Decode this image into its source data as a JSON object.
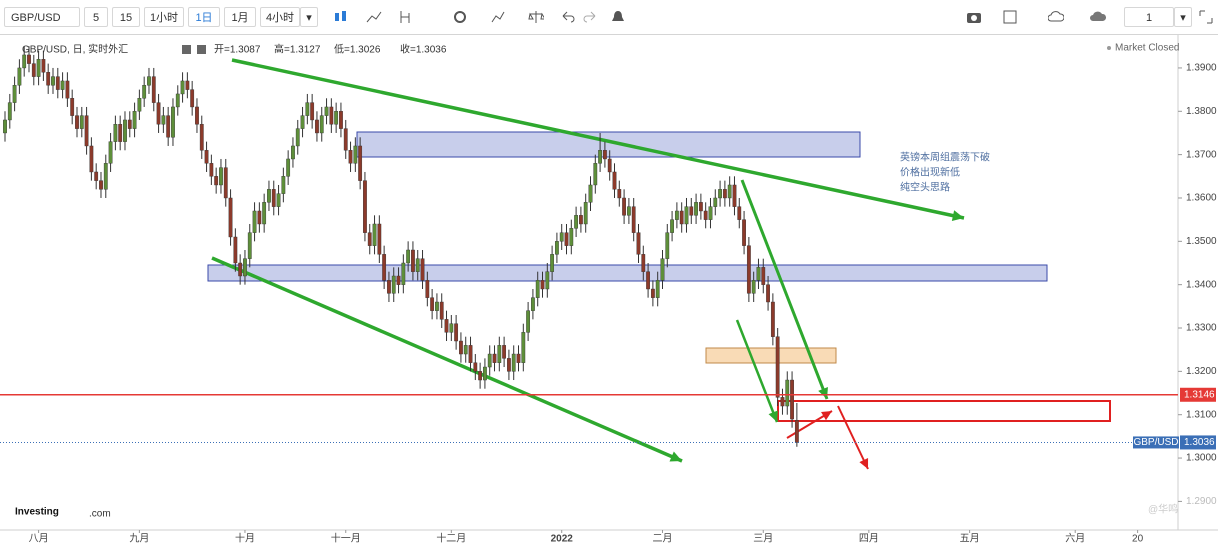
{
  "toolbar": {
    "symbol": "GBP/USD",
    "intervals": [
      "5",
      "15",
      "1小时",
      "1日",
      "1月",
      "4小时"
    ],
    "count": "1"
  },
  "chart_data": {
    "type": "candlestick",
    "legend_title": "GBP/USD, 日, 实时外汇",
    "ohlc_text": [
      "开=1.3087",
      "高=1.3127",
      "低=1.3026",
      "收=1.3036"
    ],
    "status": "Market Closed",
    "annotation": [
      "英镑本周组震荡下破",
      "价格出现新低",
      "纯空头思路"
    ],
    "logo": [
      "Investing",
      ".com"
    ],
    "watermark": "@华鸣",
    "up_color": "#5e8f3a",
    "down_color": "#8c3a2b",
    "xlim": [
      0,
      244
    ],
    "xticks": [
      {
        "value": 7,
        "label": "八月"
      },
      {
        "value": 28,
        "label": "九月"
      },
      {
        "value": 50,
        "label": "十月"
      },
      {
        "value": 71,
        "label": "十一月"
      },
      {
        "value": 93,
        "label": "十二月"
      },
      {
        "value": 116,
        "label": "2022"
      },
      {
        "value": 137,
        "label": "二月"
      },
      {
        "value": 158,
        "label": "三月"
      },
      {
        "value": 180,
        "label": "四月"
      },
      {
        "value": 201,
        "label": "五月"
      },
      {
        "value": 223,
        "label": "六月"
      },
      {
        "value": 236,
        "label": "20"
      }
    ],
    "ylim": [
      1.2834,
      1.3976
    ],
    "yticks": [
      {
        "value": 1.29,
        "label": "1.2900"
      },
      {
        "value": 1.3,
        "label": "1.3000"
      },
      {
        "value": 1.31,
        "label": "1.3100"
      },
      {
        "value": 1.32,
        "label": "1.3200"
      },
      {
        "value": 1.33,
        "label": "1.3300"
      },
      {
        "value": 1.34,
        "label": "1.3400"
      },
      {
        "value": 1.35,
        "label": "1.3500"
      },
      {
        "value": 1.36,
        "label": "1.3600"
      },
      {
        "value": 1.37,
        "label": "1.3700"
      },
      {
        "value": 1.38,
        "label": "1.3800"
      },
      {
        "value": 1.39,
        "label": "1.3900"
      }
    ],
    "hlines": [
      {
        "value": 1.3146,
        "color": "#e53935",
        "style": "solid"
      },
      {
        "name": "GBP/USD",
        "value": 1.3036,
        "color": "#3b6fb6",
        "style": "dotted"
      }
    ],
    "open": [
      1.375,
      1.378,
      1.382,
      1.386,
      1.39,
      1.393,
      1.391,
      1.388,
      1.392,
      1.389,
      1.386,
      1.388,
      1.385,
      1.387,
      1.383,
      1.379,
      1.376,
      1.379,
      1.372,
      1.366,
      1.364,
      1.362,
      1.368,
      1.373,
      1.377,
      1.373,
      1.378,
      1.376,
      1.38,
      1.383,
      1.386,
      1.388,
      1.382,
      1.377,
      1.379,
      1.374,
      1.381,
      1.384,
      1.387,
      1.385,
      1.381,
      1.377,
      1.371,
      1.368,
      1.365,
      1.363,
      1.367,
      1.36,
      1.351,
      1.345,
      1.342,
      1.346,
      1.352,
      1.357,
      1.354,
      1.359,
      1.362,
      1.358,
      1.361,
      1.365,
      1.369,
      1.372,
      1.376,
      1.379,
      1.382,
      1.378,
      1.375,
      1.379,
      1.381,
      1.377,
      1.38,
      1.376,
      1.371,
      1.368,
      1.372,
      1.364,
      1.352,
      1.349,
      1.354,
      1.347,
      1.341,
      1.338,
      1.342,
      1.34,
      1.345,
      1.348,
      1.343,
      1.346,
      1.341,
      1.337,
      1.334,
      1.336,
      1.332,
      1.329,
      1.331,
      1.327,
      1.324,
      1.326,
      1.322,
      1.32,
      1.318,
      1.321,
      1.324,
      1.322,
      1.326,
      1.323,
      1.32,
      1.324,
      1.322,
      1.329,
      1.334,
      1.337,
      1.341,
      1.339,
      1.343,
      1.347,
      1.35,
      1.352,
      1.349,
      1.353,
      1.356,
      1.354,
      1.359,
      1.363,
      1.368,
      1.371,
      1.369,
      1.366,
      1.362,
      1.36,
      1.356,
      1.358,
      1.352,
      1.347,
      1.343,
      1.339,
      1.337,
      1.341,
      1.346,
      1.352,
      1.355,
      1.357,
      1.354,
      1.358,
      1.356,
      1.359,
      1.357,
      1.355,
      1.358,
      1.36,
      1.362,
      1.36,
      1.363,
      1.358,
      1.355,
      1.349,
      1.338,
      1.341,
      1.344,
      1.34,
      1.336,
      1.328,
      1.314,
      1.312,
      1.318,
      1.3087
    ],
    "high": [
      1.38,
      1.384,
      1.388,
      1.392,
      1.395,
      1.395,
      1.393,
      1.394,
      1.394,
      1.391,
      1.39,
      1.39,
      1.389,
      1.389,
      1.385,
      1.381,
      1.381,
      1.381,
      1.374,
      1.368,
      1.366,
      1.37,
      1.375,
      1.379,
      1.379,
      1.38,
      1.38,
      1.382,
      1.385,
      1.388,
      1.39,
      1.39,
      1.384,
      1.381,
      1.381,
      1.383,
      1.386,
      1.389,
      1.389,
      1.387,
      1.383,
      1.379,
      1.373,
      1.37,
      1.367,
      1.369,
      1.369,
      1.362,
      1.353,
      1.347,
      1.348,
      1.354,
      1.359,
      1.359,
      1.361,
      1.364,
      1.364,
      1.363,
      1.367,
      1.371,
      1.374,
      1.378,
      1.381,
      1.384,
      1.384,
      1.38,
      1.381,
      1.383,
      1.383,
      1.382,
      1.382,
      1.378,
      1.373,
      1.374,
      1.374,
      1.366,
      1.354,
      1.356,
      1.356,
      1.349,
      1.343,
      1.344,
      1.344,
      1.347,
      1.35,
      1.35,
      1.348,
      1.348,
      1.343,
      1.339,
      1.338,
      1.338,
      1.334,
      1.333,
      1.333,
      1.329,
      1.328,
      1.328,
      1.324,
      1.322,
      1.323,
      1.326,
      1.326,
      1.328,
      1.328,
      1.325,
      1.326,
      1.326,
      1.331,
      1.336,
      1.339,
      1.343,
      1.343,
      1.345,
      1.349,
      1.352,
      1.354,
      1.354,
      1.355,
      1.358,
      1.358,
      1.361,
      1.365,
      1.37,
      1.375,
      1.373,
      1.371,
      1.368,
      1.364,
      1.362,
      1.36,
      1.36,
      1.354,
      1.349,
      1.345,
      1.341,
      1.343,
      1.348,
      1.354,
      1.357,
      1.359,
      1.359,
      1.36,
      1.36,
      1.361,
      1.361,
      1.359,
      1.36,
      1.362,
      1.364,
      1.364,
      1.365,
      1.365,
      1.36,
      1.357,
      1.351,
      1.343,
      1.346,
      1.346,
      1.342,
      1.338,
      1.33,
      1.316,
      1.32,
      1.32,
      1.3127
    ],
    "low": [
      1.373,
      1.376,
      1.38,
      1.384,
      1.388,
      1.389,
      1.386,
      1.386,
      1.387,
      1.384,
      1.384,
      1.383,
      1.383,
      1.381,
      1.377,
      1.374,
      1.374,
      1.37,
      1.364,
      1.362,
      1.36,
      1.36,
      1.366,
      1.371,
      1.371,
      1.371,
      1.374,
      1.374,
      1.378,
      1.381,
      1.384,
      1.38,
      1.375,
      1.375,
      1.372,
      1.372,
      1.379,
      1.382,
      1.383,
      1.379,
      1.375,
      1.369,
      1.366,
      1.363,
      1.361,
      1.361,
      1.358,
      1.349,
      1.343,
      1.34,
      1.34,
      1.344,
      1.35,
      1.352,
      1.352,
      1.357,
      1.356,
      1.356,
      1.359,
      1.363,
      1.367,
      1.37,
      1.374,
      1.377,
      1.376,
      1.373,
      1.373,
      1.377,
      1.375,
      1.375,
      1.374,
      1.369,
      1.366,
      1.366,
      1.362,
      1.35,
      1.347,
      1.347,
      1.345,
      1.339,
      1.336,
      1.336,
      1.338,
      1.338,
      1.343,
      1.341,
      1.341,
      1.339,
      1.335,
      1.332,
      1.332,
      1.33,
      1.327,
      1.327,
      1.325,
      1.322,
      1.322,
      1.32,
      1.318,
      1.316,
      1.316,
      1.319,
      1.32,
      1.32,
      1.321,
      1.318,
      1.318,
      1.32,
      1.32,
      1.327,
      1.332,
      1.335,
      1.337,
      1.337,
      1.341,
      1.345,
      1.348,
      1.347,
      1.347,
      1.351,
      1.352,
      1.352,
      1.357,
      1.361,
      1.366,
      1.367,
      1.364,
      1.36,
      1.358,
      1.354,
      1.354,
      1.35,
      1.345,
      1.341,
      1.337,
      1.335,
      1.335,
      1.339,
      1.344,
      1.35,
      1.353,
      1.352,
      1.352,
      1.354,
      1.354,
      1.355,
      1.353,
      1.353,
      1.356,
      1.358,
      1.358,
      1.358,
      1.356,
      1.353,
      1.347,
      1.336,
      1.336,
      1.339,
      1.338,
      1.334,
      1.326,
      1.312,
      1.31,
      1.31,
      1.307,
      1.3026
    ],
    "close": [
      1.378,
      1.382,
      1.386,
      1.39,
      1.393,
      1.391,
      1.388,
      1.392,
      1.389,
      1.386,
      1.388,
      1.385,
      1.387,
      1.383,
      1.379,
      1.376,
      1.379,
      1.372,
      1.366,
      1.364,
      1.362,
      1.368,
      1.373,
      1.377,
      1.373,
      1.378,
      1.376,
      1.38,
      1.383,
      1.386,
      1.388,
      1.382,
      1.377,
      1.379,
      1.374,
      1.381,
      1.384,
      1.387,
      1.385,
      1.381,
      1.377,
      1.371,
      1.368,
      1.365,
      1.363,
      1.367,
      1.36,
      1.351,
      1.345,
      1.342,
      1.346,
      1.352,
      1.357,
      1.354,
      1.359,
      1.362,
      1.358,
      1.361,
      1.365,
      1.369,
      1.372,
      1.376,
      1.379,
      1.382,
      1.378,
      1.375,
      1.379,
      1.381,
      1.377,
      1.38,
      1.376,
      1.371,
      1.368,
      1.372,
      1.364,
      1.352,
      1.349,
      1.354,
      1.347,
      1.341,
      1.338,
      1.342,
      1.34,
      1.345,
      1.348,
      1.343,
      1.346,
      1.341,
      1.337,
      1.334,
      1.336,
      1.332,
      1.329,
      1.331,
      1.327,
      1.324,
      1.326,
      1.322,
      1.32,
      1.318,
      1.321,
      1.324,
      1.322,
      1.326,
      1.323,
      1.32,
      1.324,
      1.322,
      1.329,
      1.334,
      1.337,
      1.341,
      1.339,
      1.343,
      1.347,
      1.35,
      1.352,
      1.349,
      1.353,
      1.356,
      1.354,
      1.359,
      1.363,
      1.368,
      1.371,
      1.369,
      1.366,
      1.362,
      1.36,
      1.356,
      1.358,
      1.352,
      1.347,
      1.343,
      1.339,
      1.337,
      1.341,
      1.346,
      1.352,
      1.355,
      1.357,
      1.354,
      1.358,
      1.356,
      1.359,
      1.357,
      1.355,
      1.358,
      1.36,
      1.362,
      1.36,
      1.363,
      1.358,
      1.355,
      1.349,
      1.338,
      1.341,
      1.344,
      1.34,
      1.336,
      1.328,
      1.314,
      1.312,
      1.318,
      1.309,
      1.3036
    ]
  }
}
